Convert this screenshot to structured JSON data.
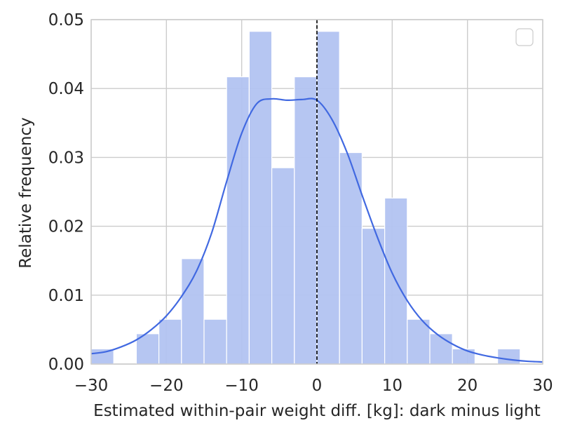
{
  "chart_data": {
    "type": "bar",
    "title": "",
    "xlabel": "Estimated within-pair weight diff. [kg]: dark minus light",
    "ylabel": "Relative frequency",
    "xlim": [
      -30,
      30
    ],
    "ylim": [
      0,
      0.05
    ],
    "xticks": [
      -30,
      -20,
      -10,
      0,
      10,
      20,
      30
    ],
    "xtick_labels": [
      "−30",
      "−20",
      "−10",
      "0",
      "10",
      "20",
      "30"
    ],
    "yticks": [
      0.0,
      0.01,
      0.02,
      0.03,
      0.04,
      0.05
    ],
    "ytick_labels": [
      "0.00",
      "0.01",
      "0.02",
      "0.03",
      "0.04",
      "0.05"
    ],
    "grid": true,
    "legend": "top-right, empty",
    "bins": {
      "edges": [
        -30,
        -27,
        -24,
        -21,
        -18,
        -15,
        -12,
        -9,
        -6,
        -3,
        0,
        3,
        6,
        9,
        12,
        15,
        18,
        21,
        24,
        27,
        30
      ],
      "values": [
        0.0022,
        0.0,
        0.0044,
        0.0065,
        0.0153,
        0.0065,
        0.0417,
        0.0483,
        0.0285,
        0.0417,
        0.0483,
        0.0307,
        0.0197,
        0.0241,
        0.0065,
        0.0044,
        0.0022,
        0.0,
        0.0022,
        0.0
      ]
    },
    "kde": {
      "x": [
        -30,
        -28,
        -26,
        -24,
        -22,
        -20,
        -18,
        -16,
        -14,
        -12,
        -10,
        -8,
        -6,
        -4,
        -2,
        0,
        2,
        4,
        6,
        8,
        10,
        12,
        14,
        16,
        18,
        20,
        22,
        24,
        26,
        28,
        30
      ],
      "y": [
        0.0015,
        0.0018,
        0.0025,
        0.0035,
        0.005,
        0.007,
        0.0098,
        0.0135,
        0.019,
        0.0265,
        0.0335,
        0.0378,
        0.0385,
        0.0383,
        0.0384,
        0.0383,
        0.0355,
        0.0307,
        0.0245,
        0.0185,
        0.0132,
        0.0092,
        0.0063,
        0.0043,
        0.0029,
        0.0019,
        0.0013,
        0.0009,
        0.0006,
        0.0004,
        0.0003
      ]
    },
    "vline": {
      "x": 0,
      "style": "dashed",
      "color": "#000000"
    },
    "colors": {
      "bar_fill": "#b2c3f1",
      "bar_edge": "#ffffff",
      "kde_line": "#4169e1",
      "grid": "#cccccc",
      "axes_edge": "#cccccc"
    }
  }
}
